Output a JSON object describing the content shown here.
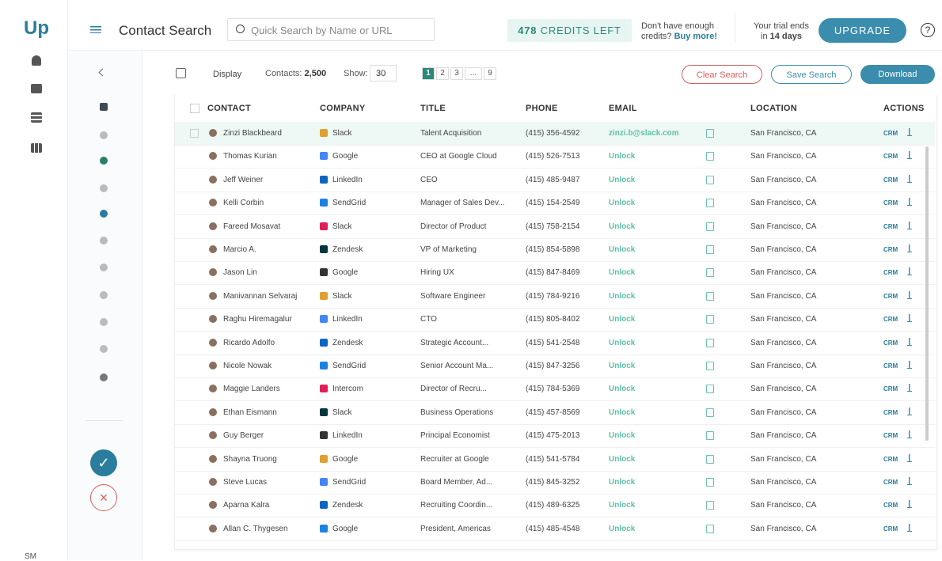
{
  "app": {
    "logo": "Up",
    "footer": "SM"
  },
  "header": {
    "title": "Contact Search",
    "search_placeholder": "Quick Search by Name or URL",
    "credits_count": "478",
    "credits_label": "CREDITS LEFT",
    "credits_note": "Don't have enough",
    "credits_note2": "credits?",
    "buy_more": "Buy more!",
    "trial": "Your trial ends",
    "trial_in": "in",
    "trial_days": "14 days",
    "upgrade": "UPGRADE",
    "help": "?"
  },
  "toolbar": {
    "display": "Display",
    "contacts_label": "Contacts:",
    "contacts_count": "2,500",
    "show_label": "Show:",
    "show_value": "30",
    "pages": [
      "1",
      "2",
      "3",
      "...",
      "9"
    ],
    "clear": "Clear Search",
    "save": "Save Search",
    "download": "Download"
  },
  "table": {
    "columns": [
      "CONTACT",
      "COMPANY",
      "TITLE",
      "PHONE",
      "EMAIL",
      "LOCATION",
      "ACTIONS"
    ],
    "action_label": "CRM",
    "rows": [
      [
        "Zinzi Blackbeard",
        "Slack",
        "Talent Acquisition",
        "(415) 356-4592",
        "zinzi.b@slack.com",
        "San Francisco, CA"
      ],
      [
        "Thomas Kurian",
        "Google",
        "CEO at Google Cloud",
        "(415) 526-7513",
        "Unlock",
        "San Francisco, CA"
      ],
      [
        "Jeff Weiner",
        "LinkedIn",
        "CEO",
        "(415) 485-9487",
        "Unlock",
        "San Francisco, CA"
      ],
      [
        "Kelli Corbin",
        "SendGrid",
        "Manager of Sales Dev...",
        "(415) 154-2549",
        "Unlock",
        "San Francisco, CA"
      ],
      [
        "Fareed Mosavat",
        "Slack",
        "Director of Product",
        "(415) 758-2154",
        "Unlock",
        "San Francisco, CA"
      ],
      [
        "Marcio A.",
        "Zendesk",
        "VP of Marketing",
        "(415) 854-5898",
        "Unlock",
        "San Francisco, CA"
      ],
      [
        "Jason Lin",
        "Google",
        "Hiring UX",
        "(415) 847-8469",
        "Unlock",
        "San Francisco, CA"
      ],
      [
        "Manivannan Selvaraj",
        "Slack",
        "Software Engineer",
        "(415) 784-9216",
        "Unlock",
        "San Francisco, CA"
      ],
      [
        "Raghu Hiremagalur",
        "LinkedIn",
        "CTO",
        "(415) 805-8402",
        "Unlock",
        "San Francisco, CA"
      ],
      [
        "Ricardo Adolfo",
        "Zendesk",
        "Strategic Account...",
        "(415) 541-2548",
        "Unlock",
        "San Francisco, CA"
      ],
      [
        "Nicole Nowak",
        "SendGrid",
        "Senior Account Ma...",
        "(415) 847-3256",
        "Unlock",
        "San Francisco, CA"
      ],
      [
        "Maggie Landers",
        "Intercom",
        "Director of Recru...",
        "(415) 784-5369",
        "Unlock",
        "San Francisco, CA"
      ],
      [
        "Ethan Eismann",
        "Slack",
        "Business Operations",
        "(415) 457-8569",
        "Unlock",
        "San Francisco, CA"
      ],
      [
        "Guy Berger",
        "LinkedIn",
        "Principal Economist",
        "(415) 475-2013",
        "Unlock",
        "San Francisco, CA"
      ],
      [
        "Shayna Truong",
        "Google",
        "Recruiter at Google",
        "(415) 541-5784",
        "Unlock",
        "San Francisco, CA"
      ],
      [
        "Steve Lucas",
        "SendGrid",
        "Board Member, Ad...",
        "(415) 845-3252",
        "Unlock",
        "San Francisco, CA"
      ],
      [
        "Aparna Kalra",
        "Zendesk",
        "Recruiting Coordin...",
        "(415) 489-6325",
        "Unlock",
        "San Francisco, CA"
      ],
      [
        "Allan C. Thygesen",
        "Google",
        "President, Americas",
        "(415) 485-4548",
        "Unlock",
        "San Francisco, CA"
      ]
    ]
  }
}
